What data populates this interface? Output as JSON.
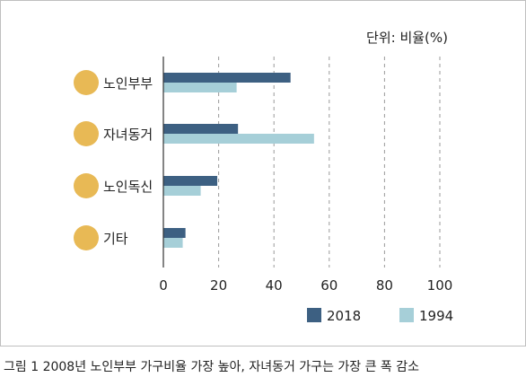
{
  "unit_label": "단위: 비율(%)",
  "caption": "그림 1 2008년 노인부부 가구비율 가장 높아, 자녀동거 가구는 가장 큰 폭 감소",
  "colors": {
    "series_2018": "#3d6082",
    "series_1994": "#a6cfd8",
    "category_dot": "#e8b955",
    "axis": "#333333",
    "grid": "#9a9a9a"
  },
  "chart_data": {
    "type": "bar",
    "orientation": "horizontal",
    "categories": [
      "노인부부",
      "자녀동거",
      "노인독신",
      "기타"
    ],
    "series": [
      {
        "name": "2018",
        "values": [
          46,
          27,
          19.5,
          8
        ]
      },
      {
        "name": "1994",
        "values": [
          26.5,
          54.5,
          13.5,
          7
        ]
      }
    ],
    "xlim": [
      0,
      100
    ],
    "xticks": [
      "0",
      "20",
      "40",
      "60",
      "80",
      "100"
    ],
    "grid": "vertical dashed",
    "legend": "bottom"
  }
}
